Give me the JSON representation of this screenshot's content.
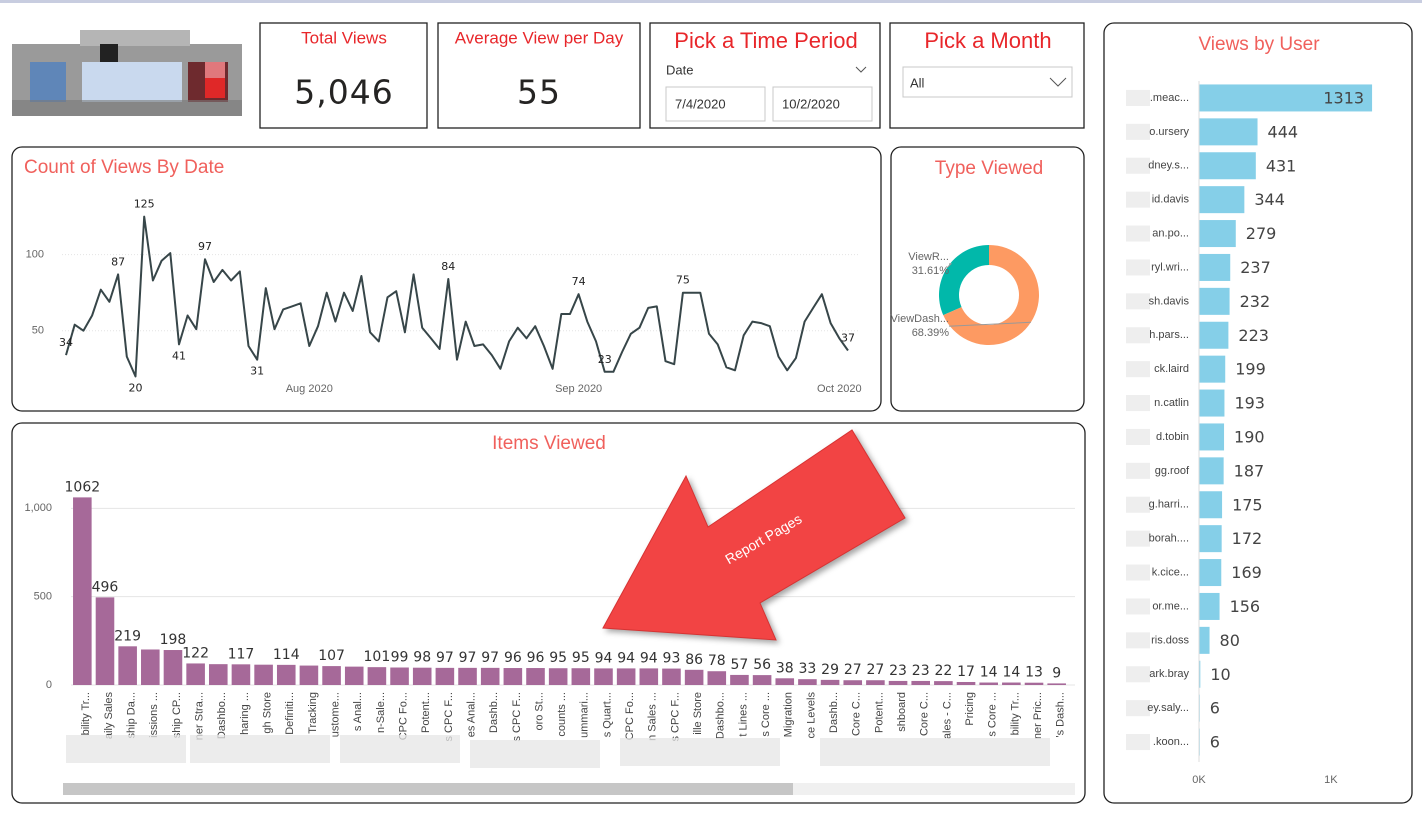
{
  "cards": [
    {
      "title": "Total Views",
      "value": "5,046"
    },
    {
      "title": "Average View per Day",
      "value": "55"
    }
  ],
  "time_period": {
    "title": "Pick a Time Period",
    "field": "Date",
    "start": "7/4/2020",
    "end": "10/2/2020"
  },
  "month_filter": {
    "title": "Pick a Month",
    "selected": "All"
  },
  "annotation": "Report Pages",
  "chart_data": [
    {
      "type": "line",
      "title": "Count of Views By Date",
      "color": "#374649",
      "x": [
        "7/4/2020",
        "7/5/2020",
        "7/6/2020",
        "7/7/2020",
        "7/8/2020",
        "7/9/2020",
        "7/10/2020",
        "7/11/2020",
        "7/12/2020",
        "7/13/2020",
        "7/14/2020",
        "7/15/2020",
        "7/16/2020",
        "7/17/2020",
        "7/18/2020",
        "7/19/2020",
        "7/20/2020",
        "7/21/2020",
        "7/22/2020",
        "7/23/2020",
        "7/24/2020",
        "7/25/2020",
        "7/26/2020",
        "7/27/2020",
        "7/28/2020",
        "7/29/2020",
        "7/30/2020",
        "7/31/2020",
        "8/1/2020",
        "8/2/2020",
        "8/3/2020",
        "8/4/2020",
        "8/5/2020",
        "8/6/2020",
        "8/7/2020",
        "8/8/2020",
        "8/9/2020",
        "8/10/2020",
        "8/11/2020",
        "8/12/2020",
        "8/13/2020",
        "8/14/2020",
        "8/15/2020",
        "8/16/2020",
        "8/17/2020",
        "8/18/2020",
        "8/19/2020",
        "8/20/2020",
        "8/21/2020",
        "8/22/2020",
        "8/23/2020",
        "8/24/2020",
        "8/25/2020",
        "8/26/2020",
        "8/27/2020",
        "8/28/2020",
        "8/29/2020",
        "8/30/2020",
        "8/31/2020",
        "9/1/2020",
        "9/2/2020",
        "9/3/2020",
        "9/4/2020",
        "9/5/2020",
        "9/6/2020",
        "9/7/2020",
        "9/8/2020",
        "9/9/2020",
        "9/10/2020",
        "9/11/2020",
        "9/12/2020",
        "9/13/2020",
        "9/14/2020",
        "9/15/2020",
        "9/16/2020",
        "9/17/2020",
        "9/18/2020",
        "9/19/2020",
        "9/20/2020",
        "9/21/2020",
        "9/22/2020",
        "9/23/2020",
        "9/24/2020",
        "9/25/2020",
        "9/26/2020",
        "9/27/2020",
        "9/28/2020",
        "9/29/2020",
        "9/30/2020",
        "10/1/2020",
        "10/2/2020"
      ],
      "values": [
        34,
        54,
        50,
        60,
        77,
        69,
        87,
        33,
        20,
        125,
        83,
        96,
        101,
        41,
        60,
        51,
        97,
        82,
        90,
        83,
        89,
        40,
        31,
        78,
        51,
        64,
        66,
        68,
        40,
        53,
        75,
        56,
        75,
        63,
        86,
        49,
        43,
        72,
        76,
        49,
        87,
        52,
        45,
        38,
        84,
        31,
        56,
        40,
        41,
        34,
        25,
        43,
        52,
        45,
        53,
        40,
        25,
        61,
        61,
        74,
        56,
        43,
        23,
        23,
        36,
        48,
        52,
        65,
        66,
        30,
        28,
        75,
        75,
        75,
        48,
        41,
        26,
        24,
        47,
        56,
        55,
        53,
        33,
        24,
        32,
        56,
        65,
        74,
        55,
        45,
        37
      ],
      "value_labels": [
        "34",
        null,
        null,
        null,
        null,
        null,
        "87",
        null,
        "20",
        "125",
        null,
        null,
        null,
        "41",
        null,
        null,
        "97",
        null,
        null,
        null,
        null,
        null,
        "31",
        null,
        null,
        null,
        null,
        null,
        null,
        null,
        null,
        null,
        null,
        null,
        null,
        null,
        null,
        null,
        null,
        null,
        null,
        null,
        null,
        null,
        "84",
        null,
        null,
        null,
        null,
        null,
        null,
        null,
        null,
        null,
        null,
        null,
        null,
        null,
        null,
        "74",
        null,
        null,
        "23",
        null,
        null,
        null,
        null,
        null,
        null,
        null,
        null,
        "75",
        null,
        null,
        null,
        null,
        null,
        null,
        null,
        null,
        null,
        null,
        null,
        null,
        null,
        null,
        null,
        null,
        null,
        null,
        "37"
      ],
      "xlim": [
        "7/4/2020",
        "10/2/2020"
      ],
      "xticks": [
        {
          "value": "8/1/2020",
          "label": "Aug 2020"
        },
        {
          "value": "9/1/2020",
          "label": "Sep 2020"
        },
        {
          "value": "10/1/2020",
          "label": "Oct 2020"
        }
      ],
      "ylim": [
        15,
        130
      ],
      "yticks": [
        50,
        100
      ],
      "grid": true
    },
    {
      "type": "donut",
      "title": "Type Viewed",
      "categories": [
        "ViewR...",
        "ViewDash..."
      ],
      "values": [
        31.61,
        68.39
      ],
      "value_labels": [
        "31.61%",
        "68.39%"
      ],
      "colors": [
        "#01b8aa",
        "#fd9a62"
      ]
    },
    {
      "type": "bar",
      "title": "Items Viewed",
      "color": "#a66999",
      "categories": [
        "bility Tr...",
        "aily Sales",
        "ship Da...",
        "issions ...",
        "ship CP...",
        "ner Stra...",
        "Dashbo...",
        "haring ...",
        "gh Store",
        "Definiti...",
        "Tracking",
        "ustome...",
        "s Anal...",
        "n-Sale...",
        "CPC Fo...",
        "Potent...",
        "s CPC F...",
        "es Anal...",
        "Dashb...",
        "s CPC F...",
        "oro St...",
        "counts ...",
        "ummari...",
        "s Quart...",
        "CPC Fo...",
        "n Sales ...",
        "s CPC F...",
        "ille Store",
        "Dashbo...",
        "t Lines ...",
        "s Core ...",
        "Migration",
        "ce Levels",
        "Dashb...",
        "Core C...",
        "Potent...",
        "shboard",
        "Core C...",
        "ales - C...",
        "Pricing",
        "s Core ...",
        "bility Tr...",
        "ner Pric...",
        "'s Dash..."
      ],
      "values": [
        1062,
        496,
        219,
        201,
        198,
        122,
        118,
        117,
        115,
        114,
        110,
        107,
        104,
        101,
        99,
        98,
        97,
        97,
        97,
        96,
        96,
        95,
        95,
        94,
        94,
        94,
        93,
        86,
        78,
        57,
        56,
        38,
        33,
        29,
        27,
        27,
        23,
        23,
        22,
        17,
        14,
        14,
        13,
        9
      ],
      "value_labels": [
        "1062",
        "496",
        "219",
        null,
        "198",
        "122",
        null,
        "117",
        null,
        "114",
        null,
        "107",
        null,
        "101",
        "99",
        "98",
        "97",
        "97",
        "97",
        "96",
        "96",
        "95",
        "95",
        "94",
        "94",
        "94",
        "93",
        "86",
        "78",
        "57",
        "56",
        "38",
        "33",
        "29",
        "27",
        "27",
        "23",
        "23",
        "22",
        "17",
        "14",
        "14",
        "13",
        "9"
      ],
      "ylim": [
        0,
        1200
      ],
      "yticks": [
        0,
        500,
        {
          "value": 1000,
          "label": "1,000"
        }
      ],
      "grid": true
    },
    {
      "type": "hbar",
      "title": "Views by User",
      "color": "#85cfe8",
      "categories": [
        ".meac...",
        "o.ursery",
        "dney.s...",
        "id.davis",
        "an.po...",
        "ryl.wri...",
        "sh.davis",
        "h.pars...",
        "ck.laird",
        "n.catlin",
        "d.tobin",
        "gg.roof",
        "g.harri...",
        "borah....",
        "k.cice...",
        "or.me...",
        "ris.doss",
        "ark.bray",
        "ey.saly...",
        ".koon..."
      ],
      "values": [
        1313,
        444,
        431,
        344,
        279,
        237,
        232,
        223,
        199,
        193,
        190,
        187,
        175,
        172,
        169,
        156,
        80,
        10,
        6,
        6
      ],
      "xlim": [
        0,
        1320
      ],
      "xticks": [
        {
          "value": 0,
          "label": "0K"
        },
        {
          "value": 1000,
          "label": "1K"
        }
      ],
      "grid": false
    }
  ]
}
